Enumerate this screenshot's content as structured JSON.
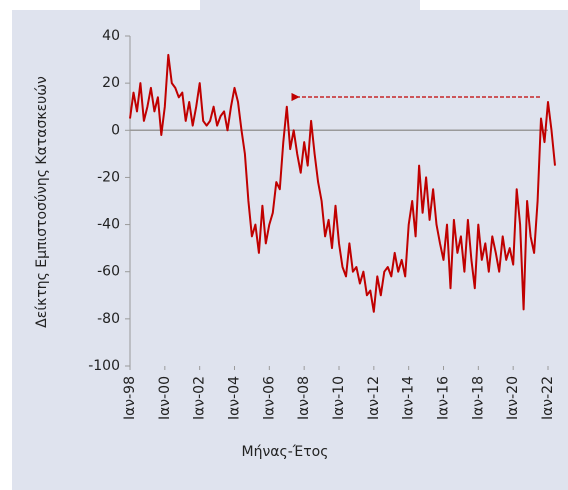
{
  "chart_data": {
    "type": "line",
    "y_label": "Δείκτης Εμπιστοσύνης Κατασκευών",
    "x_label": "Μήνας-Έτος",
    "x": [
      1998.0,
      1998.2,
      1998.4,
      1998.6,
      1998.8,
      1999.0,
      1999.2,
      1999.4,
      1999.6,
      1999.8,
      2000.0,
      2000.2,
      2000.4,
      2000.6,
      2000.8,
      2001.0,
      2001.2,
      2001.4,
      2001.6,
      2001.8,
      2002.0,
      2002.2,
      2002.4,
      2002.6,
      2002.8,
      2003.0,
      2003.2,
      2003.4,
      2003.6,
      2003.8,
      2004.0,
      2004.2,
      2004.4,
      2004.6,
      2004.8,
      2005.0,
      2005.2,
      2005.4,
      2005.6,
      2005.8,
      2006.0,
      2006.2,
      2006.4,
      2006.6,
      2006.8,
      2007.0,
      2007.2,
      2007.4,
      2007.6,
      2007.8,
      2008.0,
      2008.2,
      2008.4,
      2008.6,
      2008.8,
      2009.0,
      2009.2,
      2009.4,
      2009.6,
      2009.8,
      2010.0,
      2010.2,
      2010.4,
      2010.6,
      2010.8,
      2011.0,
      2011.2,
      2011.4,
      2011.6,
      2011.8,
      2012.0,
      2012.2,
      2012.4,
      2012.6,
      2012.8,
      2013.0,
      2013.2,
      2013.4,
      2013.6,
      2013.8,
      2014.0,
      2014.2,
      2014.4,
      2014.6,
      2014.8,
      2015.0,
      2015.2,
      2015.4,
      2015.6,
      2015.8,
      2016.0,
      2016.2,
      2016.4,
      2016.6,
      2016.8,
      2017.0,
      2017.2,
      2017.4,
      2017.6,
      2017.8,
      2018.0,
      2018.2,
      2018.4,
      2018.6,
      2018.8,
      2019.0,
      2019.2,
      2019.4,
      2019.6,
      2019.8,
      2020.0,
      2020.2,
      2020.4,
      2020.6,
      2020.8,
      2021.0,
      2021.2,
      2021.4,
      2021.6,
      2021.8,
      2022.0,
      2022.2,
      2022.4
    ],
    "series": [
      {
        "color": "#c00000",
        "values": [
          5,
          16,
          8,
          20,
          4,
          10,
          18,
          8,
          14,
          -2,
          10,
          32,
          20,
          18,
          14,
          16,
          4,
          12,
          2,
          10,
          20,
          4,
          2,
          4,
          10,
          2,
          6,
          8,
          0,
          10,
          18,
          12,
          0,
          -10,
          -30,
          -45,
          -40,
          -52,
          -32,
          -48,
          -40,
          -35,
          -22,
          -25,
          -5,
          10,
          -8,
          0,
          -10,
          -18,
          -5,
          -15,
          4,
          -10,
          -22,
          -30,
          -45,
          -38,
          -50,
          -32,
          -48,
          -58,
          -62,
          -48,
          -60,
          -58,
          -65,
          -60,
          -70,
          -68,
          -77,
          -62,
          -70,
          -60,
          -58,
          -62,
          -52,
          -60,
          -55,
          -62,
          -40,
          -30,
          -45,
          -15,
          -35,
          -20,
          -38,
          -25,
          -40,
          -48,
          -55,
          -40,
          -67,
          -38,
          -52,
          -45,
          -60,
          -38,
          -55,
          -67,
          -40,
          -55,
          -48,
          -60,
          -45,
          -52,
          -60,
          -45,
          -55,
          -50,
          -57,
          -25,
          -40,
          -76,
          -30,
          -45,
          -52,
          -30,
          5,
          -5,
          12,
          0,
          -15
        ]
      }
    ],
    "xlim": [
      1998,
      2022
    ],
    "xticks": [
      {
        "value": 1998,
        "label": "Ιαν-98"
      },
      {
        "value": 2000,
        "label": "Ιαν-00"
      },
      {
        "value": 2002,
        "label": "Ιαν-02"
      },
      {
        "value": 2004,
        "label": "Ιαν-04"
      },
      {
        "value": 2006,
        "label": "Ιαν-06"
      },
      {
        "value": 2008,
        "label": "Ιαν-08"
      },
      {
        "value": 2010,
        "label": "Ιαν-10"
      },
      {
        "value": 2012,
        "label": "Ιαν-12"
      },
      {
        "value": 2014,
        "label": "Ιαν-14"
      },
      {
        "value": 2016,
        "label": "Ιαν-16"
      },
      {
        "value": 2018,
        "label": "Ιαν-18"
      },
      {
        "value": 2020,
        "label": "Ιαν-20"
      },
      {
        "value": 2022,
        "label": "Ιαν-22"
      }
    ],
    "ylim": [
      -100,
      40
    ],
    "yticks": [
      -100,
      -80,
      -60,
      -40,
      -20,
      0,
      20,
      40
    ]
  }
}
